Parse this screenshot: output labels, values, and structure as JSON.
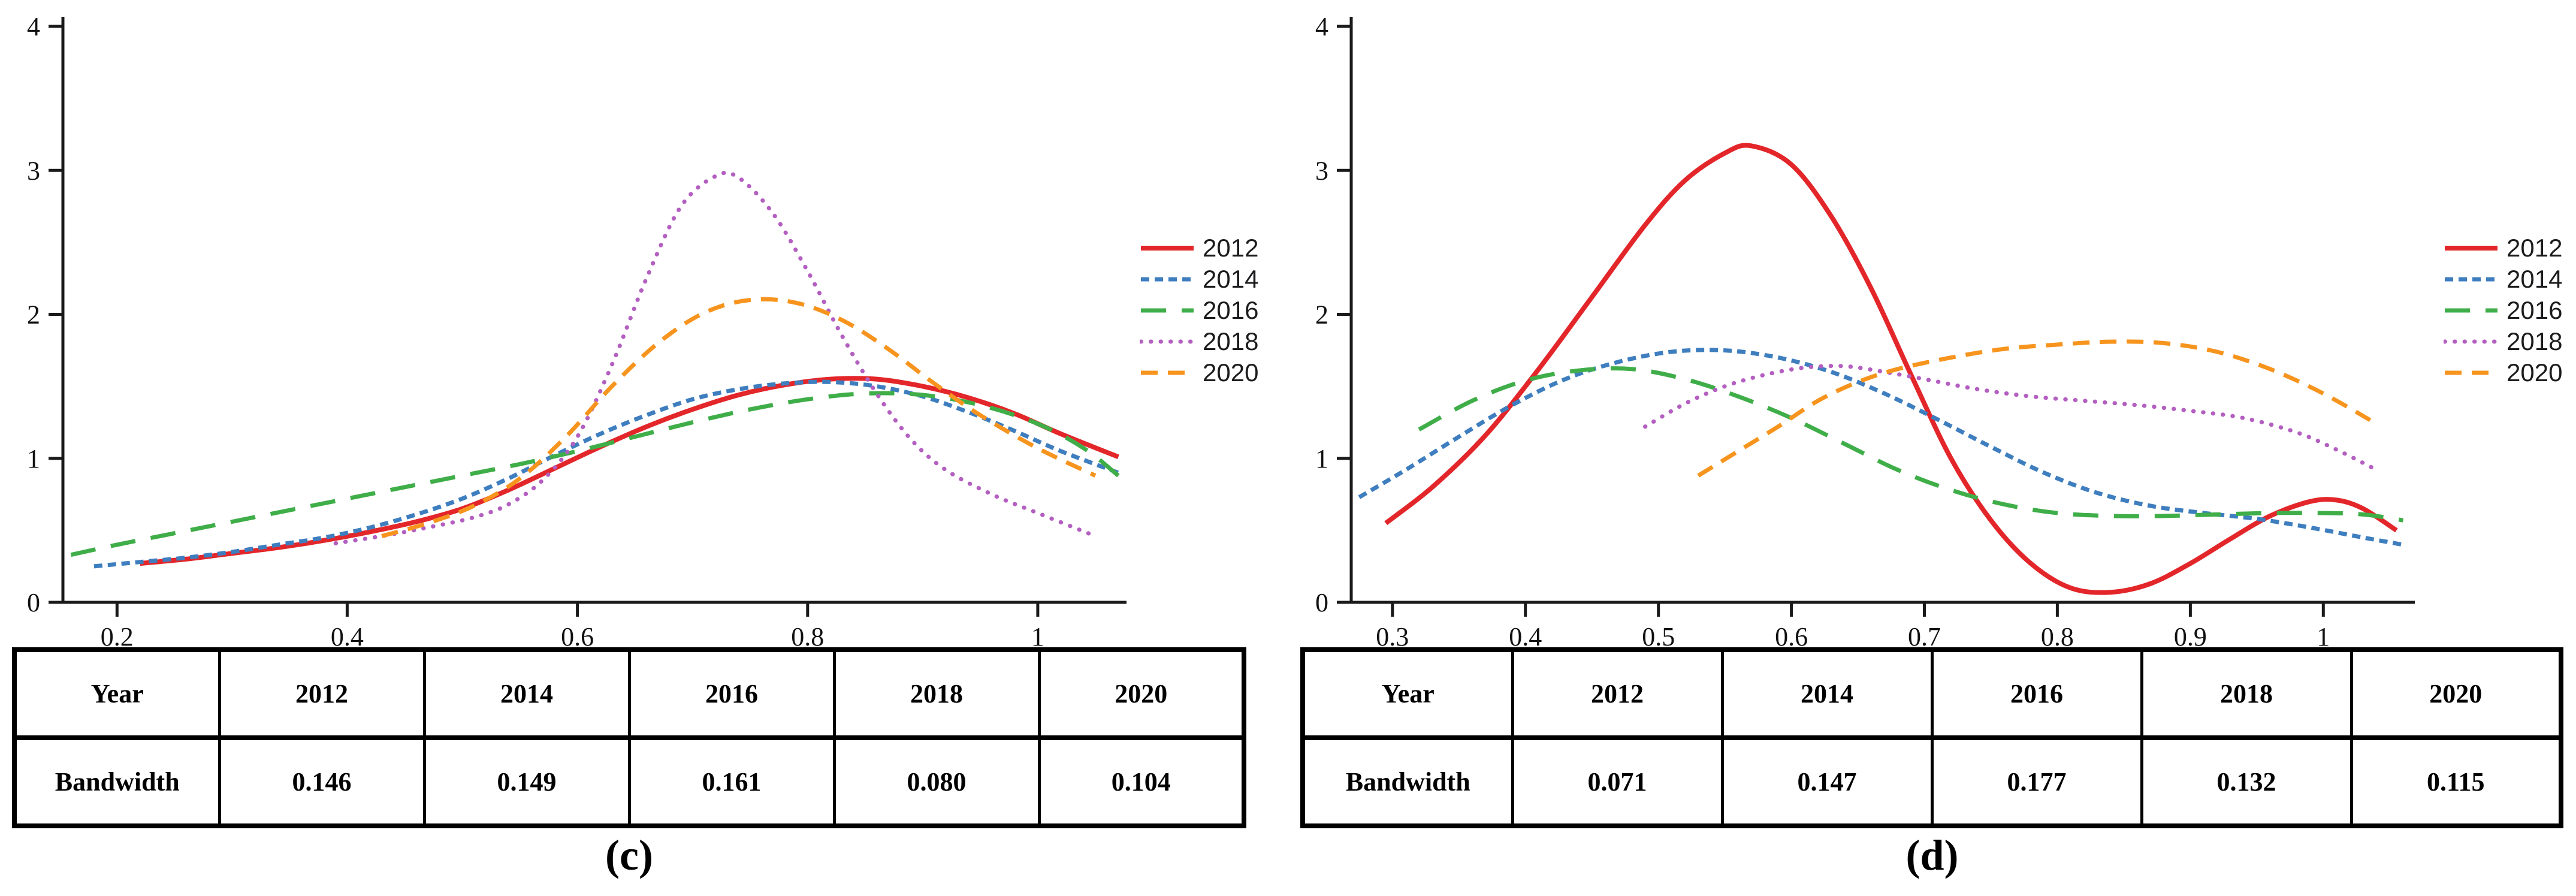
{
  "figure": {
    "background_color": "#ffffff",
    "axis_color": "#1a1a1a",
    "text_color": "#111111"
  },
  "chart_data": [
    {
      "type": "line",
      "panel_id": "c",
      "caption": "(c)",
      "title": "",
      "xlabel": "",
      "ylabel": "",
      "xlim": [
        0.153,
        1.075
      ],
      "ylim": [
        0,
        4
      ],
      "grid": "off",
      "legend_position": "right",
      "x_ticks": [
        {
          "value": 0.2,
          "label": "0.2"
        },
        {
          "value": 0.4,
          "label": "0.4"
        },
        {
          "value": 0.6,
          "label": "0.6"
        },
        {
          "value": 0.8,
          "label": "0.8"
        },
        {
          "value": 1.0,
          "label": "1"
        }
      ],
      "y_ticks": [
        {
          "value": 0,
          "label": "0"
        },
        {
          "value": 1,
          "label": "1"
        },
        {
          "value": 2,
          "label": "2"
        },
        {
          "value": 3,
          "label": "3"
        },
        {
          "value": 4,
          "label": "4"
        }
      ],
      "series": [
        {
          "name": "2012",
          "color": "#E3262A",
          "dasharray": "",
          "linecap": "butt",
          "line_width": 8,
          "points": [
            [
              0.22,
              0.27
            ],
            [
              0.26,
              0.3
            ],
            [
              0.3,
              0.34
            ],
            [
              0.34,
              0.38
            ],
            [
              0.38,
              0.43
            ],
            [
              0.42,
              0.49
            ],
            [
              0.46,
              0.56
            ],
            [
              0.5,
              0.65
            ],
            [
              0.54,
              0.78
            ],
            [
              0.58,
              0.93
            ],
            [
              0.62,
              1.08
            ],
            [
              0.66,
              1.22
            ],
            [
              0.7,
              1.34
            ],
            [
              0.74,
              1.44
            ],
            [
              0.78,
              1.51
            ],
            [
              0.82,
              1.55
            ],
            [
              0.86,
              1.55
            ],
            [
              0.9,
              1.5
            ],
            [
              0.94,
              1.42
            ],
            [
              0.98,
              1.31
            ],
            [
              1.02,
              1.17
            ],
            [
              1.07,
              1.01
            ]
          ]
        },
        {
          "name": "2014",
          "color": "#3E7EBF",
          "dasharray": "14 9",
          "linecap": "butt",
          "line_width": 7,
          "points": [
            [
              0.18,
              0.25
            ],
            [
              0.22,
              0.28
            ],
            [
              0.26,
              0.31
            ],
            [
              0.3,
              0.35
            ],
            [
              0.34,
              0.4
            ],
            [
              0.38,
              0.45
            ],
            [
              0.42,
              0.52
            ],
            [
              0.46,
              0.61
            ],
            [
              0.5,
              0.72
            ],
            [
              0.54,
              0.86
            ],
            [
              0.58,
              1.02
            ],
            [
              0.62,
              1.17
            ],
            [
              0.66,
              1.3
            ],
            [
              0.7,
              1.41
            ],
            [
              0.74,
              1.48
            ],
            [
              0.78,
              1.52
            ],
            [
              0.82,
              1.53
            ],
            [
              0.86,
              1.5
            ],
            [
              0.9,
              1.43
            ],
            [
              0.94,
              1.32
            ],
            [
              0.98,
              1.19
            ],
            [
              1.02,
              1.05
            ],
            [
              1.07,
              0.9
            ]
          ]
        },
        {
          "name": "2016",
          "color": "#3FAE49",
          "dasharray": "42 26",
          "linecap": "butt",
          "line_width": 7,
          "points": [
            [
              0.16,
              0.33
            ],
            [
              0.2,
              0.4
            ],
            [
              0.25,
              0.48
            ],
            [
              0.3,
              0.56
            ],
            [
              0.35,
              0.64
            ],
            [
              0.4,
              0.72
            ],
            [
              0.45,
              0.8
            ],
            [
              0.5,
              0.88
            ],
            [
              0.55,
              0.96
            ],
            [
              0.6,
              1.05
            ],
            [
              0.65,
              1.15
            ],
            [
              0.7,
              1.25
            ],
            [
              0.75,
              1.34
            ],
            [
              0.8,
              1.41
            ],
            [
              0.85,
              1.45
            ],
            [
              0.9,
              1.44
            ],
            [
              0.95,
              1.37
            ],
            [
              1.0,
              1.24
            ],
            [
              1.04,
              1.07
            ],
            [
              1.07,
              0.88
            ]
          ]
        },
        {
          "name": "2018",
          "color": "#B35FC0",
          "dasharray": "0.5 16",
          "linecap": "round",
          "line_width": 7,
          "points": [
            [
              0.39,
              0.41
            ],
            [
              0.43,
              0.46
            ],
            [
              0.47,
              0.52
            ],
            [
              0.51,
              0.59
            ],
            [
              0.54,
              0.68
            ],
            [
              0.57,
              0.85
            ],
            [
              0.6,
              1.15
            ],
            [
              0.63,
              1.65
            ],
            [
              0.66,
              2.25
            ],
            [
              0.69,
              2.75
            ],
            [
              0.72,
              2.96
            ],
            [
              0.74,
              2.95
            ],
            [
              0.77,
              2.7
            ],
            [
              0.8,
              2.3
            ],
            [
              0.83,
              1.85
            ],
            [
              0.86,
              1.45
            ],
            [
              0.89,
              1.13
            ],
            [
              0.92,
              0.92
            ],
            [
              0.96,
              0.75
            ],
            [
              1.0,
              0.62
            ],
            [
              1.05,
              0.46
            ]
          ]
        },
        {
          "name": "2020",
          "color": "#F7941E",
          "dasharray": "28 17",
          "linecap": "butt",
          "line_width": 7,
          "points": [
            [
              0.43,
              0.46
            ],
            [
              0.47,
              0.55
            ],
            [
              0.51,
              0.67
            ],
            [
              0.55,
              0.86
            ],
            [
              0.59,
              1.15
            ],
            [
              0.63,
              1.5
            ],
            [
              0.67,
              1.8
            ],
            [
              0.71,
              2.01
            ],
            [
              0.75,
              2.1
            ],
            [
              0.79,
              2.08
            ],
            [
              0.83,
              1.96
            ],
            [
              0.87,
              1.76
            ],
            [
              0.91,
              1.52
            ],
            [
              0.95,
              1.3
            ],
            [
              1.0,
              1.07
            ],
            [
              1.05,
              0.88
            ]
          ]
        }
      ],
      "table": {
        "row1_label": "Year",
        "row2_label": "Bandwidth",
        "years": [
          "2012",
          "2014",
          "2016",
          "2018",
          "2020"
        ],
        "bandwidths": [
          "0.146",
          "0.149",
          "0.161",
          "0.080",
          "0.104"
        ]
      }
    },
    {
      "type": "line",
      "panel_id": "d",
      "caption": "(d)",
      "title": "",
      "xlabel": "",
      "ylabel": "",
      "xlim": [
        0.269,
        1.067
      ],
      "ylim": [
        0,
        4
      ],
      "grid": "off",
      "legend_position": "right",
      "x_ticks": [
        {
          "value": 0.3,
          "label": "0.3"
        },
        {
          "value": 0.4,
          "label": "0.4"
        },
        {
          "value": 0.5,
          "label": "0.5"
        },
        {
          "value": 0.6,
          "label": "0.6"
        },
        {
          "value": 0.7,
          "label": "0.7"
        },
        {
          "value": 0.8,
          "label": "0.8"
        },
        {
          "value": 0.9,
          "label": "0.9"
        },
        {
          "value": 1.0,
          "label": "1"
        }
      ],
      "y_ticks": [
        {
          "value": 0,
          "label": "0"
        },
        {
          "value": 1,
          "label": "1"
        },
        {
          "value": 2,
          "label": "2"
        },
        {
          "value": 3,
          "label": "3"
        },
        {
          "value": 4,
          "label": "4"
        }
      ],
      "series": [
        {
          "name": "2012",
          "color": "#E3262A",
          "dasharray": "",
          "linecap": "butt",
          "line_width": 8,
          "points": [
            [
              0.295,
              0.55
            ],
            [
              0.33,
              0.8
            ],
            [
              0.37,
              1.16
            ],
            [
              0.41,
              1.62
            ],
            [
              0.45,
              2.12
            ],
            [
              0.49,
              2.62
            ],
            [
              0.52,
              2.93
            ],
            [
              0.55,
              3.12
            ],
            [
              0.57,
              3.17
            ],
            [
              0.6,
              3.04
            ],
            [
              0.63,
              2.68
            ],
            [
              0.66,
              2.18
            ],
            [
              0.69,
              1.58
            ],
            [
              0.72,
              1.0
            ],
            [
              0.75,
              0.57
            ],
            [
              0.78,
              0.27
            ],
            [
              0.81,
              0.1
            ],
            [
              0.84,
              0.07
            ],
            [
              0.87,
              0.13
            ],
            [
              0.9,
              0.27
            ],
            [
              0.93,
              0.44
            ],
            [
              0.96,
              0.6
            ],
            [
              0.99,
              0.7
            ],
            [
              1.01,
              0.71
            ],
            [
              1.03,
              0.65
            ],
            [
              1.055,
              0.5
            ]
          ]
        },
        {
          "name": "2014",
          "color": "#3E7EBF",
          "dasharray": "14 9",
          "linecap": "butt",
          "line_width": 7,
          "points": [
            [
              0.275,
              0.73
            ],
            [
              0.31,
              0.92
            ],
            [
              0.35,
              1.15
            ],
            [
              0.39,
              1.37
            ],
            [
              0.43,
              1.55
            ],
            [
              0.47,
              1.67
            ],
            [
              0.51,
              1.74
            ],
            [
              0.55,
              1.75
            ],
            [
              0.59,
              1.7
            ],
            [
              0.63,
              1.6
            ],
            [
              0.67,
              1.45
            ],
            [
              0.71,
              1.27
            ],
            [
              0.75,
              1.08
            ],
            [
              0.79,
              0.9
            ],
            [
              0.83,
              0.76
            ],
            [
              0.87,
              0.67
            ],
            [
              0.91,
              0.62
            ],
            [
              0.95,
              0.58
            ],
            [
              0.99,
              0.52
            ],
            [
              1.03,
              0.45
            ],
            [
              1.06,
              0.4
            ]
          ]
        },
        {
          "name": "2016",
          "color": "#3FAE49",
          "dasharray": "42 26",
          "linecap": "butt",
          "line_width": 7,
          "points": [
            [
              0.32,
              1.2
            ],
            [
              0.36,
              1.4
            ],
            [
              0.4,
              1.54
            ],
            [
              0.44,
              1.61
            ],
            [
              0.48,
              1.62
            ],
            [
              0.52,
              1.55
            ],
            [
              0.56,
              1.43
            ],
            [
              0.6,
              1.28
            ],
            [
              0.64,
              1.1
            ],
            [
              0.68,
              0.92
            ],
            [
              0.72,
              0.78
            ],
            [
              0.76,
              0.68
            ],
            [
              0.8,
              0.62
            ],
            [
              0.84,
              0.6
            ],
            [
              0.88,
              0.6
            ],
            [
              0.92,
              0.61
            ],
            [
              0.96,
              0.62
            ],
            [
              1.0,
              0.62
            ],
            [
              1.03,
              0.61
            ],
            [
              1.06,
              0.57
            ]
          ]
        },
        {
          "name": "2018",
          "color": "#B35FC0",
          "dasharray": "0.5 16",
          "linecap": "round",
          "line_width": 7,
          "points": [
            [
              0.49,
              1.22
            ],
            [
              0.52,
              1.38
            ],
            [
              0.55,
              1.5
            ],
            [
              0.58,
              1.58
            ],
            [
              0.61,
              1.63
            ],
            [
              0.64,
              1.64
            ],
            [
              0.67,
              1.6
            ],
            [
              0.7,
              1.55
            ],
            [
              0.74,
              1.48
            ],
            [
              0.78,
              1.43
            ],
            [
              0.82,
              1.4
            ],
            [
              0.86,
              1.37
            ],
            [
              0.9,
              1.33
            ],
            [
              0.94,
              1.28
            ],
            [
              0.98,
              1.18
            ],
            [
              1.01,
              1.06
            ],
            [
              1.04,
              0.92
            ]
          ]
        },
        {
          "name": "2020",
          "color": "#F7941E",
          "dasharray": "28 17",
          "linecap": "butt",
          "line_width": 7,
          "points": [
            [
              0.53,
              0.88
            ],
            [
              0.56,
              1.05
            ],
            [
              0.59,
              1.22
            ],
            [
              0.62,
              1.4
            ],
            [
              0.65,
              1.53
            ],
            [
              0.68,
              1.62
            ],
            [
              0.72,
              1.7
            ],
            [
              0.76,
              1.76
            ],
            [
              0.8,
              1.79
            ],
            [
              0.84,
              1.81
            ],
            [
              0.88,
              1.8
            ],
            [
              0.92,
              1.74
            ],
            [
              0.96,
              1.62
            ],
            [
              1.0,
              1.45
            ],
            [
              1.04,
              1.24
            ]
          ]
        }
      ],
      "table": {
        "row1_label": "Year",
        "row2_label": "Bandwidth",
        "years": [
          "2012",
          "2014",
          "2016",
          "2018",
          "2020"
        ],
        "bandwidths": [
          "0.071",
          "0.147",
          "0.177",
          "0.132",
          "0.115"
        ]
      }
    }
  ]
}
